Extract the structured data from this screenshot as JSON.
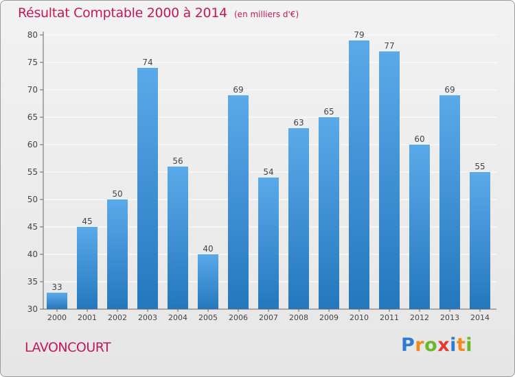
{
  "title": "Résultat Comptable 2000 à 2014",
  "subtitle": "(en milliers d'€)",
  "commune": "LAVONCOURT",
  "logo": {
    "letters": [
      "P",
      "r",
      "o",
      "x",
      "i",
      "t",
      "i"
    ],
    "colors": [
      "#2e7bd1",
      "#f08a1c",
      "#6ab82a",
      "#e53935",
      "#2e7bd1",
      "#f08a1c",
      "#6ab82a"
    ]
  },
  "colors": {
    "bar_light": "#5aaaea",
    "bar_dark": "#2577bd",
    "title": "#c2185b"
  },
  "chart_data": {
    "type": "bar",
    "title": "Résultat Comptable 2000 à 2014",
    "xlabel": "",
    "ylabel": "",
    "categories": [
      "2000",
      "2001",
      "2002",
      "2003",
      "2004",
      "2005",
      "2006",
      "2007",
      "2008",
      "2009",
      "2010",
      "2011",
      "2012",
      "2013",
      "2014"
    ],
    "values": [
      33,
      45,
      50,
      74,
      56,
      40,
      69,
      54,
      63,
      65,
      79,
      77,
      60,
      69,
      55
    ],
    "ylim": [
      30,
      80
    ],
    "yticks": [
      30,
      35,
      40,
      45,
      50,
      55,
      60,
      65,
      70,
      75,
      80
    ],
    "grid": true
  }
}
